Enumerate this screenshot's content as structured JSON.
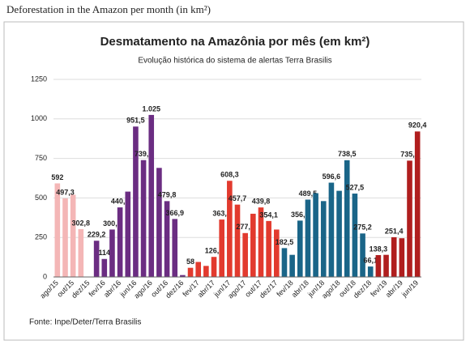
{
  "page_title": "Deforestation in the Amazon per month (in km²)",
  "chart_data": {
    "type": "bar",
    "title": "Desmatamento na Amazônia por mês (em km²)",
    "subtitle": "Evolução histórica do sistema de alertas Terra Brasilis",
    "source": "Fonte: Inpe/Deter/Terra Brasilis",
    "categories": [
      "ago/15",
      null,
      "out/15",
      null,
      "dez/15",
      null,
      "fev/16",
      null,
      "abr/16",
      null,
      "jun/16",
      null,
      "ago/16",
      null,
      "out/16",
      null,
      "dez/16",
      null,
      "fev/17",
      null,
      "abr/17",
      null,
      "jun/17",
      null,
      "ago/17",
      null,
      "out/17",
      null,
      "dez/17",
      null,
      "fev/18",
      null,
      "abr/18",
      null,
      "jun/18",
      null,
      "ago/18",
      null,
      "out/18",
      null,
      "dez/18",
      null,
      "fev/19",
      null,
      "abr/19",
      null,
      "jun/19"
    ],
    "values": [
      592,
      497.3,
      520,
      302.8,
      null,
      229.2,
      114,
      300.1,
      440.1,
      540,
      951.5,
      739.2,
      1025,
      690,
      479.8,
      366.9,
      12,
      58,
      95,
      70,
      126.9,
      363.3,
      608.3,
      457.7,
      277.7,
      400,
      439.8,
      354.1,
      300,
      182.5,
      140,
      356.6,
      489.5,
      530,
      480,
      596.6,
      545,
      738.5,
      527.5,
      275.2,
      66.1,
      138.3,
      140,
      251.4,
      245,
      735.8,
      920.4
    ],
    "value_labels": [
      "592",
      "497,3",
      null,
      "302,8",
      null,
      "229,2",
      "114",
      "300,1",
      "440,1",
      null,
      "951,5",
      "739,2",
      "1.025",
      null,
      "479,8",
      "366,9",
      null,
      "58",
      null,
      null,
      "126,9",
      "363,3",
      "608,3",
      "457,7",
      "277,7",
      null,
      "439,8",
      "354,1",
      null,
      "182,5",
      null,
      "356,6",
      "489,5",
      null,
      null,
      "596,6",
      null,
      "738,5",
      "527,5",
      "275,2",
      "66,1",
      "138,3",
      null,
      "251,4",
      null,
      "735,8",
      "920,4"
    ],
    "colors": [
      "#f4b6b6",
      "#f4b6b6",
      "#f4b6b6",
      "#f4b6b6",
      "#f4b6b6",
      "#6b2d82",
      "#6b2d82",
      "#6b2d82",
      "#6b2d82",
      "#6b2d82",
      "#6b2d82",
      "#6b2d82",
      "#6b2d82",
      "#6b2d82",
      "#6b2d82",
      "#6b2d82",
      "#6b2d82",
      "#e23a2e",
      "#e23a2e",
      "#e23a2e",
      "#e23a2e",
      "#e23a2e",
      "#e23a2e",
      "#e23a2e",
      "#e23a2e",
      "#e23a2e",
      "#e23a2e",
      "#e23a2e",
      "#e23a2e",
      "#1a6588",
      "#1a6588",
      "#1a6588",
      "#1a6588",
      "#1a6588",
      "#1a6588",
      "#1a6588",
      "#1a6588",
      "#1a6588",
      "#1a6588",
      "#1a6588",
      "#1a6588",
      "#b01e1e",
      "#b01e1e",
      "#b01e1e",
      "#b01e1e",
      "#b01e1e",
      "#b01e1e"
    ],
    "ylim": [
      0,
      1250
    ],
    "yticks": [
      0,
      250,
      500,
      750,
      1000,
      1250
    ],
    "grid": true
  }
}
